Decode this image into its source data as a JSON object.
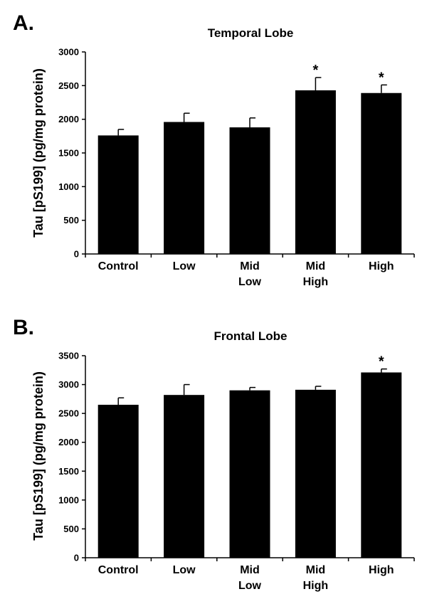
{
  "chart_data": [
    {
      "panel": "A.",
      "type": "bar",
      "title": "Temporal Lobe",
      "ylabel": "Tau [pS199] (pg/mg protein)",
      "xlabel": "",
      "ylim": [
        0,
        3000
      ],
      "yticks": [
        0,
        500,
        1000,
        1500,
        2000,
        2500,
        3000
      ],
      "categories": [
        [
          "Control"
        ],
        [
          "Low"
        ],
        [
          "Mid",
          "Low"
        ],
        [
          "Mid",
          "High"
        ],
        [
          "High"
        ]
      ],
      "values": [
        1760,
        1960,
        1880,
        2430,
        2390
      ],
      "errors": [
        90,
        130,
        140,
        190,
        120
      ],
      "significance": [
        "",
        "",
        "",
        "*",
        "*"
      ],
      "bar_color": "#000000",
      "grid": false
    },
    {
      "panel": "B.",
      "type": "bar",
      "title": "Frontal Lobe",
      "ylabel": "Tau [pS199] (pg/mg protein)",
      "xlabel": "",
      "ylim": [
        0,
        3500
      ],
      "yticks": [
        0,
        500,
        1000,
        1500,
        2000,
        2500,
        3000,
        3500
      ],
      "categories": [
        [
          "Control"
        ],
        [
          "Low"
        ],
        [
          "Mid",
          "Low"
        ],
        [
          "Mid",
          "High"
        ],
        [
          "High"
        ]
      ],
      "values": [
        2650,
        2820,
        2900,
        2910,
        3210
      ],
      "errors": [
        120,
        180,
        50,
        60,
        60
      ],
      "significance": [
        "",
        "",
        "",
        "",
        "*"
      ],
      "bar_color": "#000000",
      "grid": false
    }
  ]
}
